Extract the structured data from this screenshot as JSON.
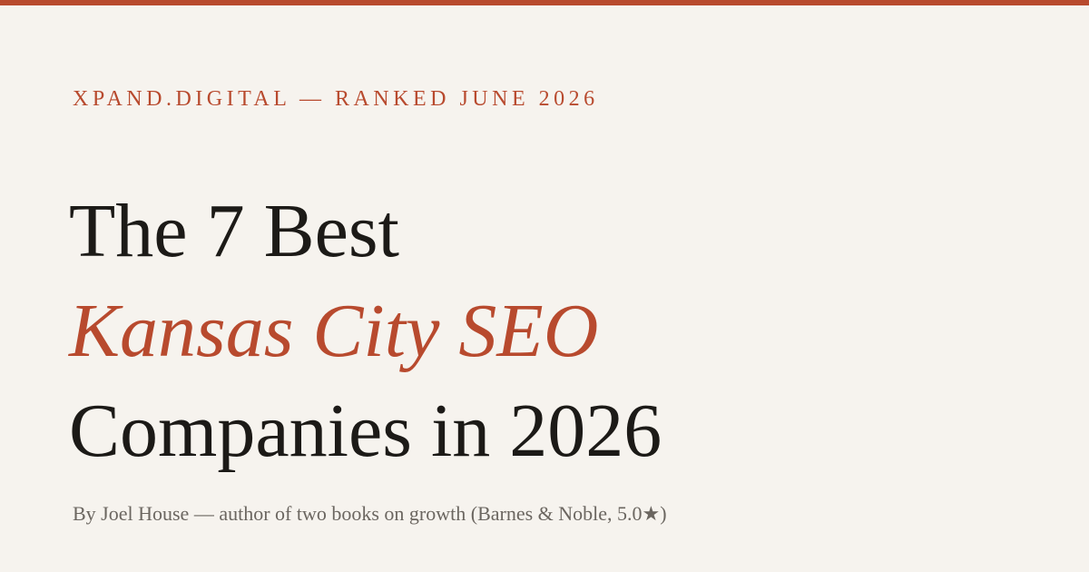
{
  "eyebrow": "XPAND.DIGITAL — RANKED JUNE 2026",
  "title": {
    "line1": "The 7 Best",
    "line2": "Kansas City SEO",
    "line3": "Companies in 2026"
  },
  "byline": "By Joel House — author of two books on growth (Barnes & Noble, 5.0★)"
}
